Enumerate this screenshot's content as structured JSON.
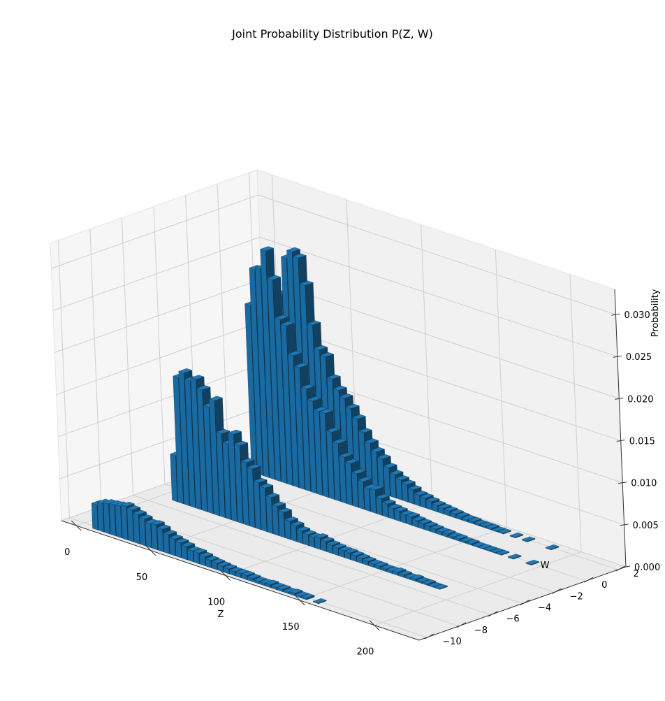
{
  "chart_data": {
    "type": "bar3d",
    "title": "Joint Probability Distribution P(Z, W)",
    "xlabel": "Z",
    "ylabel": "W",
    "zlabel": "Probability",
    "xlim": [
      -10,
      230
    ],
    "ylim": [
      -10.5,
      2.5
    ],
    "zlim": [
      0,
      0.033
    ],
    "xticks": [
      "0",
      "50",
      "100",
      "150",
      "200"
    ],
    "xtick_values": [
      0,
      50,
      100,
      150,
      200
    ],
    "yticks": [
      "−10",
      "−8",
      "−6",
      "−4",
      "−2",
      "0",
      "2"
    ],
    "ytick_values": [
      -10,
      -8,
      -6,
      -4,
      -2,
      0,
      2
    ],
    "zticks": [
      "0.000",
      "0.005",
      "0.010",
      "0.015",
      "0.020",
      "0.025",
      "0.030"
    ],
    "ztick_values": [
      0,
      0.005,
      0.01,
      0.015,
      0.02,
      0.025,
      0.03
    ],
    "grid": true,
    "bar_color": "#1f77b4",
    "series": [
      {
        "w": -10,
        "z": [
          10,
          14,
          18,
          22,
          26,
          30,
          34,
          38,
          42,
          46,
          50,
          54,
          58,
          62,
          66,
          70,
          74,
          78,
          82,
          86,
          90,
          94,
          98,
          102,
          106,
          110,
          114,
          118,
          122,
          126,
          130,
          134,
          138,
          142,
          146,
          150,
          158
        ],
        "p": [
          0.003,
          0.0034,
          0.0036,
          0.0037,
          0.0038,
          0.004,
          0.0038,
          0.0035,
          0.0032,
          0.0029,
          0.003,
          0.0027,
          0.0023,
          0.002,
          0.0018,
          0.0016,
          0.0013,
          0.0013,
          0.0011,
          0.0009,
          0.0008,
          0.0007,
          0.0006,
          0.0005,
          0.0005,
          0.0005,
          0.0004,
          0.0003,
          0.0003,
          0.0004,
          0.0003,
          0.0003,
          0.0002,
          0.0003,
          0.0002,
          0.0002,
          0.0001
        ]
      },
      {
        "w": -5,
        "z": [
          10,
          14,
          18,
          22,
          26,
          30,
          34,
          38,
          42,
          46,
          50,
          54,
          58,
          62,
          66,
          70,
          74,
          78,
          82,
          86,
          90,
          94,
          98,
          102,
          106,
          110,
          114,
          118,
          122,
          126,
          130,
          134,
          138,
          142,
          146,
          150,
          154,
          158,
          162,
          166,
          170,
          174,
          178,
          182,
          186
        ],
        "p": [
          0.0055,
          0.015,
          0.0158,
          0.0151,
          0.0155,
          0.0145,
          0.0127,
          0.0137,
          0.01,
          0.009,
          0.0104,
          0.0093,
          0.0075,
          0.007,
          0.0056,
          0.0052,
          0.0043,
          0.0035,
          0.003,
          0.0022,
          0.0019,
          0.0015,
          0.0013,
          0.0012,
          0.0014,
          0.0012,
          0.001,
          0.0009,
          0.0008,
          0.0008,
          0.0007,
          0.0006,
          0.0005,
          0.0004,
          0.0004,
          0.0003,
          0.0003,
          0.0004,
          0.0003,
          0.0002,
          0.0003,
          0.0002,
          0.0002,
          0.0001,
          0.0001
        ]
      },
      {
        "w": 0,
        "z": [
          10,
          14,
          18,
          22,
          26,
          30,
          34,
          38,
          42,
          46,
          50,
          54,
          58,
          62,
          66,
          70,
          74,
          78,
          82,
          86,
          90,
          94,
          98,
          102,
          106,
          110,
          114,
          118,
          122,
          126,
          130,
          134,
          138,
          142,
          146,
          150,
          154,
          158,
          162,
          166,
          170,
          174,
          182,
          194
        ],
        "p": [
          0.02,
          0.0245,
          0.0248,
          0.0272,
          0.024,
          0.0195,
          0.019,
          0.0157,
          0.0145,
          0.0122,
          0.011,
          0.01,
          0.01,
          0.008,
          0.0069,
          0.0055,
          0.005,
          0.004,
          0.0033,
          0.0027,
          0.0028,
          0.002,
          0.0016,
          0.0013,
          0.0012,
          0.001,
          0.001,
          0.0008,
          0.0007,
          0.0006,
          0.0005,
          0.0004,
          0.0004,
          0.0003,
          0.0003,
          0.0002,
          0.0002,
          0.0001,
          0.0001,
          0.0001,
          0.0001,
          0.0001,
          0.0001,
          0.0001
        ]
      },
      {
        "w": 2,
        "z": [
          10,
          14,
          18,
          22,
          26,
          30,
          34,
          38,
          42,
          46,
          50,
          54,
          58,
          62,
          66,
          70,
          74,
          78,
          82,
          86,
          90,
          94,
          98,
          102,
          106,
          110,
          114,
          118,
          122,
          126,
          130,
          134,
          138,
          142,
          146,
          150,
          154,
          162,
          170,
          186
        ],
        "p": [
          0.02,
          0.0245,
          0.0255,
          0.025,
          0.022,
          0.0175,
          0.0148,
          0.0142,
          0.0118,
          0.0107,
          0.01,
          0.009,
          0.008,
          0.0066,
          0.0056,
          0.0048,
          0.0042,
          0.0034,
          0.0028,
          0.0024,
          0.0021,
          0.0017,
          0.0013,
          0.0012,
          0.001,
          0.0008,
          0.0007,
          0.0006,
          0.0005,
          0.0004,
          0.0003,
          0.0003,
          0.0002,
          0.0002,
          0.0002,
          0.0001,
          0.0001,
          0.0001,
          0.0001,
          0.0001
        ]
      }
    ]
  }
}
